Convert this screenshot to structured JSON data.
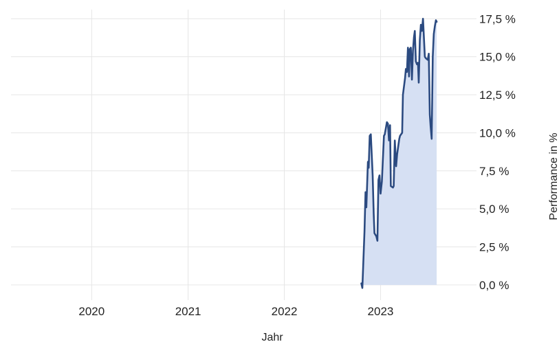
{
  "chart_data": {
    "type": "area",
    "xlabel": "Jahr",
    "ylabel": "Performance in %",
    "x_ticks": [
      "2020",
      "2021",
      "2022",
      "2023"
    ],
    "y_ticks": [
      "0,0 %",
      "2,5 %",
      "5,0 %",
      "7,5 %",
      "10,0 %",
      "12,5 %",
      "15,0 %",
      "17,5 %"
    ],
    "ylim": [
      -1.0,
      18.1
    ],
    "xlim": [
      "2019-03-01",
      "2023-12-31"
    ],
    "grid": true,
    "colors": {
      "line": "#2b4a80",
      "fill": "#d6e0f3",
      "grid": "#e6e6e6"
    },
    "series": [
      {
        "points": [
          [
            "2022-10-20",
            0.1
          ],
          [
            "2022-10-24",
            -0.2
          ],
          [
            "2022-11-01",
            3.5
          ],
          [
            "2022-11-05",
            6.1
          ],
          [
            "2022-11-08",
            5.1
          ],
          [
            "2022-11-14",
            8.1
          ],
          [
            "2022-11-17",
            7.7
          ],
          [
            "2022-11-21",
            9.8
          ],
          [
            "2022-11-25",
            9.9
          ],
          [
            "2022-12-02",
            7.2
          ],
          [
            "2022-12-06",
            4.7
          ],
          [
            "2022-12-09",
            3.4
          ],
          [
            "2022-12-16",
            3.2
          ],
          [
            "2022-12-20",
            2.9
          ],
          [
            "2022-12-24",
            6.9
          ],
          [
            "2022-12-28",
            7.2
          ],
          [
            "2023-01-01",
            6.0
          ],
          [
            "2023-01-06",
            6.8
          ],
          [
            "2023-01-14",
            9.8
          ],
          [
            "2023-01-17",
            9.9
          ],
          [
            "2023-01-25",
            10.7
          ],
          [
            "2023-01-29",
            10.6
          ],
          [
            "2023-02-02",
            9.5
          ],
          [
            "2023-02-06",
            10.5
          ],
          [
            "2023-02-09",
            6.5
          ],
          [
            "2023-02-17",
            6.4
          ],
          [
            "2023-02-20",
            6.5
          ],
          [
            "2023-02-24",
            9.5
          ],
          [
            "2023-03-01",
            7.8
          ],
          [
            "2023-03-05",
            8.6
          ],
          [
            "2023-03-13",
            9.6
          ],
          [
            "2023-03-16",
            9.8
          ],
          [
            "2023-03-24",
            10.0
          ],
          [
            "2023-03-27",
            12.5
          ],
          [
            "2023-04-04",
            13.6
          ],
          [
            "2023-04-07",
            14.2
          ],
          [
            "2023-04-11",
            14.0
          ],
          [
            "2023-04-15",
            15.6
          ],
          [
            "2023-04-19",
            13.7
          ],
          [
            "2023-04-22",
            15.5
          ],
          [
            "2023-04-26",
            15.6
          ],
          [
            "2023-04-30",
            13.5
          ],
          [
            "2023-05-04",
            15.4
          ],
          [
            "2023-05-08",
            16.3
          ],
          [
            "2023-05-11",
            16.7
          ],
          [
            "2023-05-15",
            14.7
          ],
          [
            "2023-05-19",
            14.5
          ],
          [
            "2023-05-23",
            14.6
          ],
          [
            "2023-05-26",
            13.3
          ],
          [
            "2023-05-30",
            16.1
          ],
          [
            "2023-06-03",
            17.1
          ],
          [
            "2023-06-07",
            16.7
          ],
          [
            "2023-06-11",
            17.5
          ],
          [
            "2023-06-18",
            15.0
          ],
          [
            "2023-06-22",
            14.9
          ],
          [
            "2023-06-29",
            14.8
          ],
          [
            "2023-07-03",
            15.2
          ],
          [
            "2023-07-07",
            11.2
          ],
          [
            "2023-07-10",
            10.4
          ],
          [
            "2023-07-14",
            9.6
          ],
          [
            "2023-07-18",
            15.0
          ],
          [
            "2023-07-22",
            16.5
          ],
          [
            "2023-07-26",
            17.0
          ],
          [
            "2023-07-30",
            17.4
          ],
          [
            "2023-08-02",
            17.3
          ]
        ]
      }
    ]
  }
}
